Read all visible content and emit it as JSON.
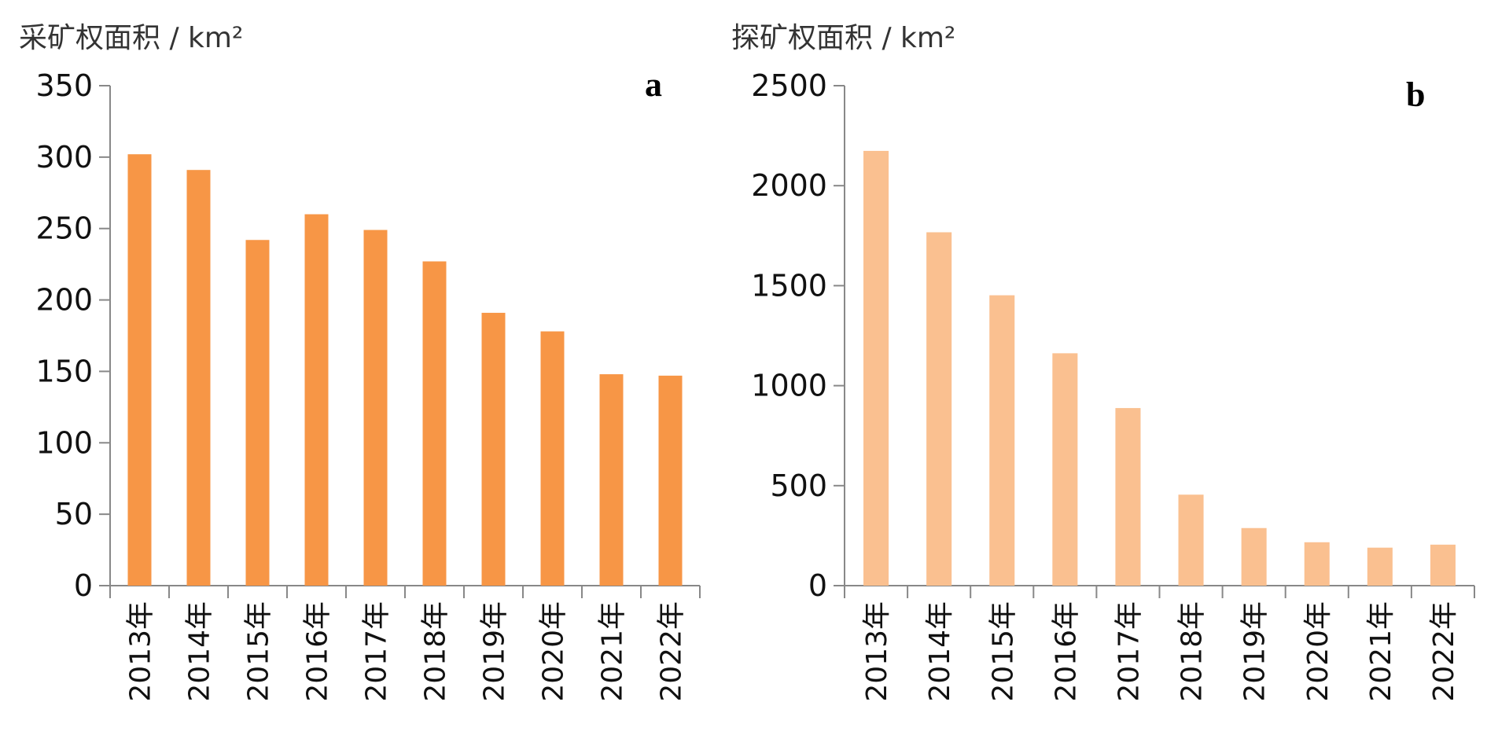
{
  "chart_data": [
    {
      "type": "bar",
      "panel_label": "a",
      "title": "采矿权面积 / km²",
      "ylabel": "采矿权面积 / km²",
      "xlabel": "",
      "categories": [
        "2013年",
        "2014年",
        "2015年",
        "2016年",
        "2017年",
        "2018年",
        "2019年",
        "2020年",
        "2021年",
        "2022年"
      ],
      "values": [
        302,
        291,
        242,
        260,
        249,
        227,
        191,
        178,
        148,
        147
      ],
      "ylim": [
        0,
        350
      ],
      "yticks": [
        0,
        50,
        100,
        150,
        200,
        250,
        300,
        350
      ],
      "grid": false,
      "color": "#F79646"
    },
    {
      "type": "bar",
      "panel_label": "b",
      "title": "探矿权面积 / km²",
      "ylabel": "探矿权面积 / km²",
      "xlabel": "",
      "categories": [
        "2013年",
        "2014年",
        "2015年",
        "2016年",
        "2017年",
        "2018年",
        "2019年",
        "2020年",
        "2021年",
        "2022年"
      ],
      "values": [
        2174,
        1767,
        1452,
        1162,
        888,
        455,
        288,
        217,
        190,
        205
      ],
      "ylim": [
        0,
        2500
      ],
      "yticks": [
        0,
        500,
        1000,
        1500,
        2000,
        2500
      ],
      "grid": false,
      "color": "#FAC090"
    }
  ]
}
